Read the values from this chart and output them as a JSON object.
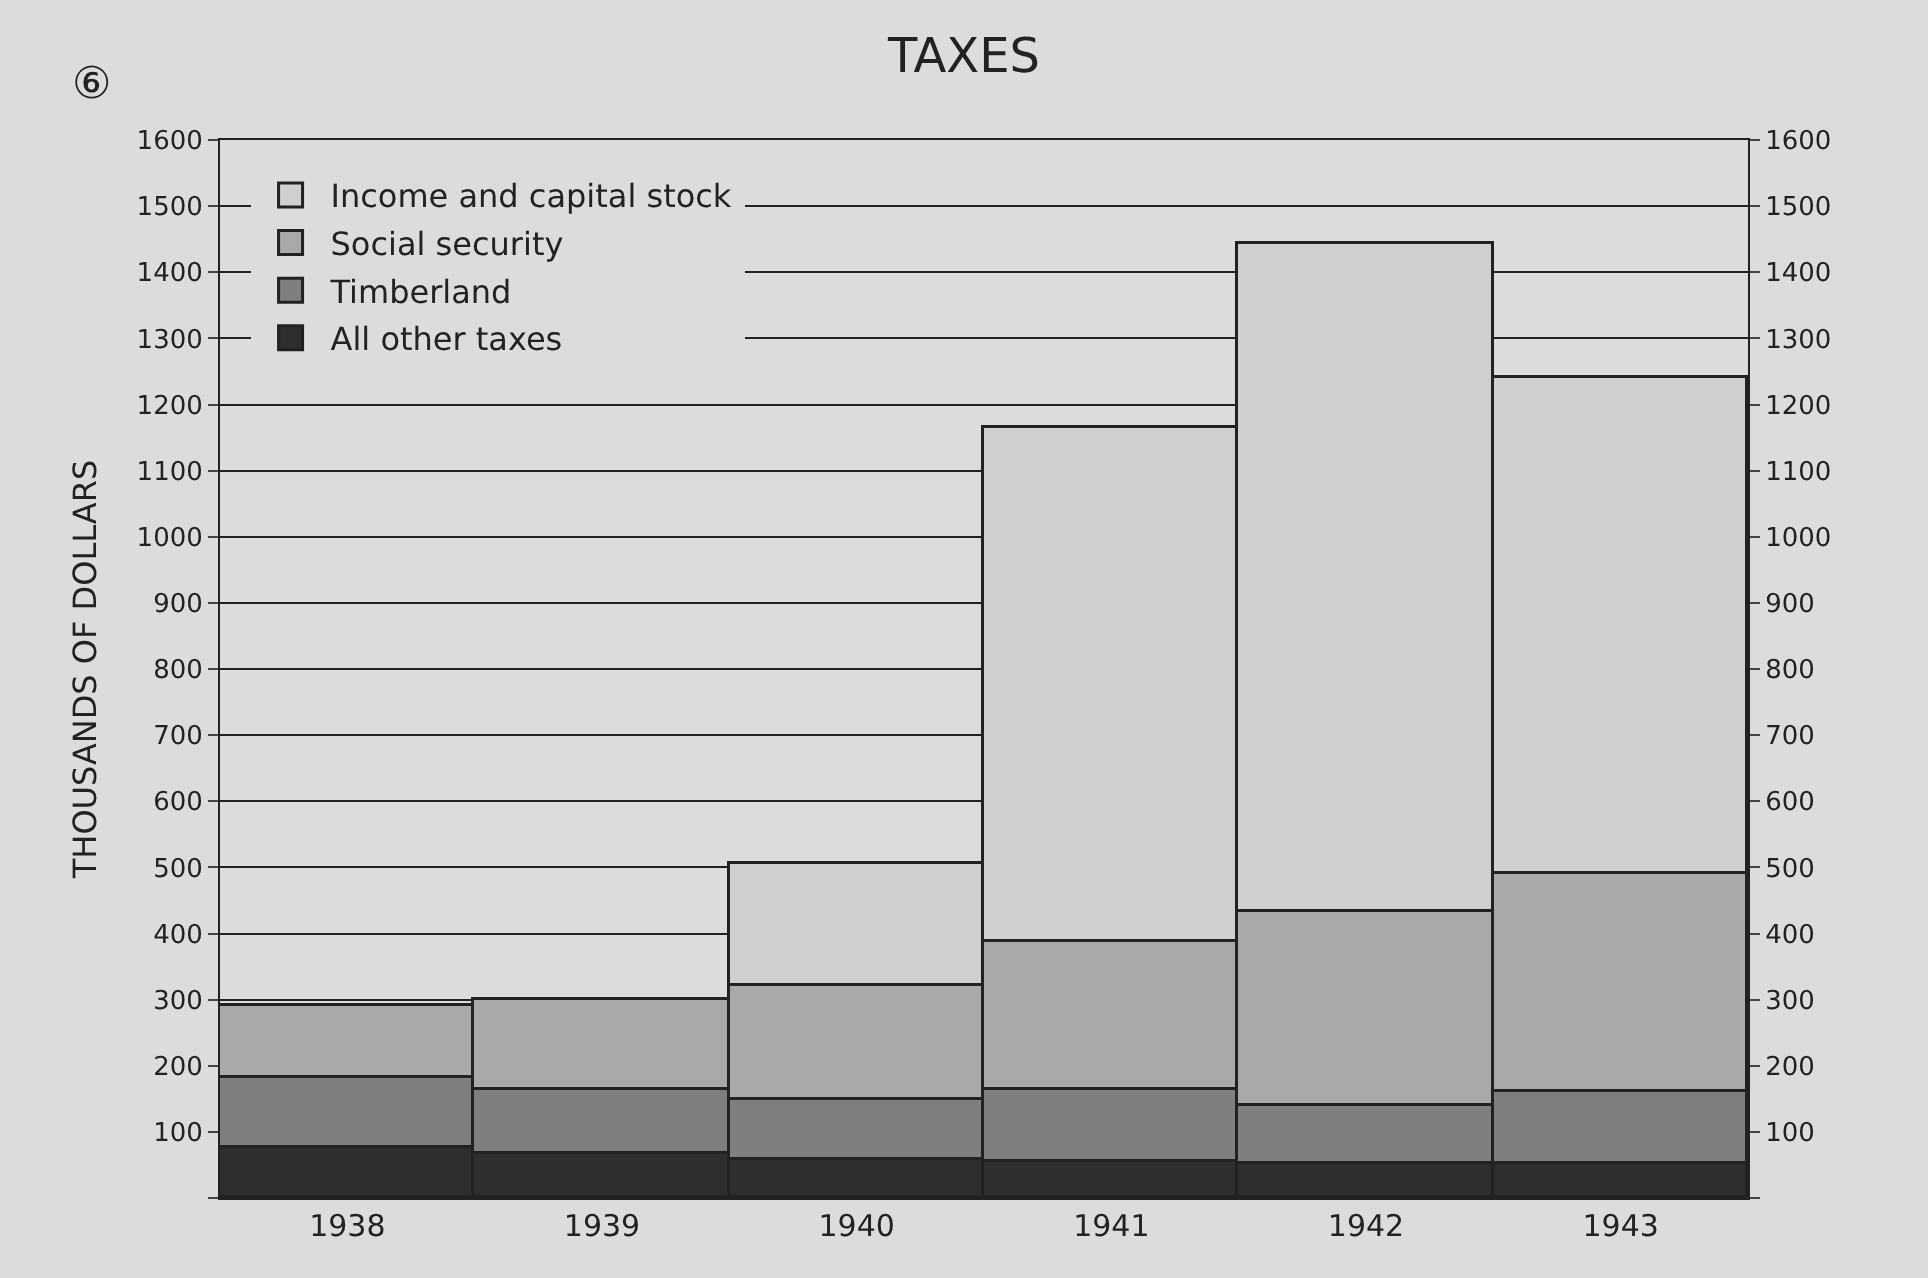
{
  "chart_data": {
    "type": "bar",
    "stacked": true,
    "title": "TAXES",
    "ylabel": "THOUSANDS OF DOLLARS",
    "annotations": [
      "⑥"
    ],
    "categories": [
      "1938",
      "1939",
      "1940",
      "1941",
      "1942",
      "1943"
    ],
    "series": [
      {
        "name": "All other taxes",
        "color": "#2e2e2e",
        "values": [
          76,
          67,
          58,
          55,
          52,
          52
        ]
      },
      {
        "name": "Timberland",
        "color": "#7f7f7f",
        "values": [
          104,
          95,
          89,
          107,
          86,
          107
        ]
      },
      {
        "name": "Social security",
        "color": "#a9a9a9",
        "values": [
          110,
          138,
          174,
          226,
          296,
          330
        ]
      },
      {
        "name": "Income and capital stock",
        "color": "#cfcfcf",
        "values": [
          null,
          null,
          184,
          777,
          1009,
          752
        ]
      }
    ],
    "ylim": [
      0,
      1600
    ],
    "yticks": [
      {
        "value": 0,
        "label": null
      },
      100,
      200,
      300,
      400,
      500,
      600,
      700,
      800,
      900,
      1000,
      1100,
      1200,
      1300,
      1400,
      1500,
      1600
    ],
    "y2lim": [
      0,
      1600
    ],
    "y2ticks": [
      {
        "value": 0,
        "label": null
      },
      100,
      200,
      300,
      400,
      500,
      600,
      700,
      800,
      900,
      1000,
      1100,
      1200,
      1300,
      1400,
      1500,
      1600
    ],
    "grid": "y",
    "legend": "top left"
  }
}
